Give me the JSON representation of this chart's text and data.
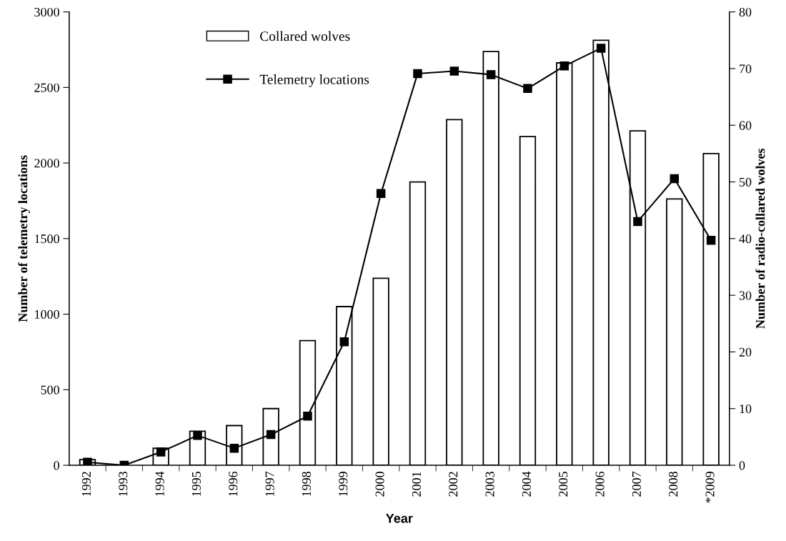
{
  "chart_data": {
    "type": "line",
    "xlabel": "Year",
    "ylabel": "Number of telemetry locations",
    "y2label": "Number of radio-collared wolves",
    "categories": [
      "1992",
      "1993",
      "1994",
      "1995",
      "1996",
      "1997",
      "1998",
      "1999",
      "2000",
      "2001",
      "2002",
      "2003",
      "2004",
      "2005",
      "2006",
      "2007",
      "2008",
      "*2009"
    ],
    "series": [
      {
        "name": "Collared wolves",
        "type": "bar",
        "axis": "y2",
        "color": "#ffffff",
        "values": [
          1,
          0,
          3,
          6,
          7,
          10,
          22,
          28,
          33,
          50,
          61,
          73,
          58,
          71,
          75,
          59,
          47,
          55
        ]
      },
      {
        "name": "Telemetry locations",
        "color": "#000000",
        "marker": "square",
        "values": [
          20,
          0,
          88,
          197,
          113,
          203,
          325,
          817,
          1798,
          2592,
          2608,
          2585,
          2493,
          2642,
          2760,
          1613,
          1897,
          1488
        ]
      }
    ],
    "ylim": [
      0,
      3000
    ],
    "yticks": [
      0,
      500,
      1000,
      1500,
      2000,
      2500,
      3000
    ],
    "y2lim": [
      0,
      80
    ],
    "y2ticks": [
      0,
      10,
      20,
      30,
      40,
      50,
      60,
      70,
      80
    ],
    "grid": false,
    "legend": "top left"
  }
}
